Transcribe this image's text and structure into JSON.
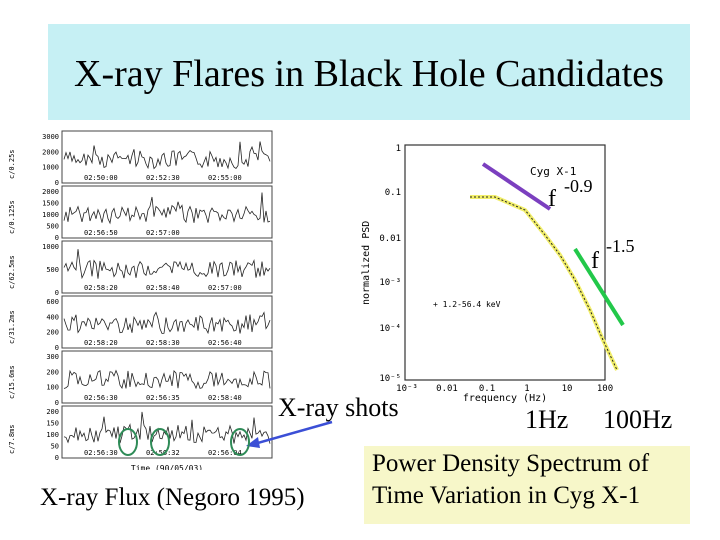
{
  "slide": {
    "title": "X-ray Flares in Black Hole Candidates",
    "shots_label": "X-ray shots",
    "flux_caption": "X-ray Flux (Negoro 1995)",
    "psd_caption_line1": "Power Density Spectrum of",
    "psd_caption_line2": "Time Variation in Cyg X-1",
    "freq_1hz": "1Hz",
    "freq_100hz": "100Hz",
    "slope1_base": "f",
    "slope1_exp": "-0.9",
    "slope2_base": "f",
    "slope2_exp": "-1.5",
    "colors": {
      "title_bg": "#c6f0f4",
      "caption_bg": "#f7f7c9",
      "purple": "#7b3fbf",
      "green": "#22c84a",
      "yellow": "#f1ee6a",
      "arrow": "#3b4fd6",
      "circle": "#2e8b57"
    }
  },
  "lightcurves": {
    "panels": [
      {
        "ylabel": "c/0.25s",
        "yticks": [
          "3000",
          "2000",
          "1000",
          "0"
        ],
        "times": [
          "02:50:00",
          "02:52:30",
          "02:55:00"
        ]
      },
      {
        "ylabel": "c/0.125s",
        "yticks": [
          "2000",
          "1500",
          "1000",
          "500",
          "0"
        ],
        "times": [
          "02:56:50",
          "02:57:00"
        ]
      },
      {
        "ylabel": "c/62.5ms",
        "yticks": [
          "1000",
          "500",
          "0"
        ],
        "times": [
          "02:58:20",
          "02:58:40",
          "02:57:00"
        ]
      },
      {
        "ylabel": "c/31.2ms",
        "yticks": [
          "600",
          "400",
          "200",
          "0"
        ],
        "times": [
          "02:58:20",
          "02:58:30",
          "02:56:40"
        ]
      },
      {
        "ylabel": "c/15.6ms",
        "yticks": [
          "300",
          "200",
          "100",
          "0"
        ],
        "times": [
          "02:56:30",
          "02:56:35",
          "02:58:40"
        ]
      },
      {
        "ylabel": "c/7.8ms",
        "yticks": [
          "200",
          "150",
          "100",
          "50",
          "0"
        ],
        "times": [
          "02:56:30",
          "02:56:32",
          "02:56:04"
        ]
      }
    ],
    "xlabel": "Time (90/05/03)"
  },
  "psd": {
    "source_label": "Cyg X-1",
    "ylabel": "normalized PSD",
    "xlabel": "frequency (Hz)",
    "legend": "+ 1.2-56.4 keV",
    "yticks": [
      "1",
      "0.1",
      "0.01",
      "10⁻³",
      "10⁻⁴",
      "10⁻⁵"
    ],
    "xticks": [
      "10⁻³",
      "0.01",
      "0.1",
      "1",
      "10",
      "100"
    ]
  }
}
